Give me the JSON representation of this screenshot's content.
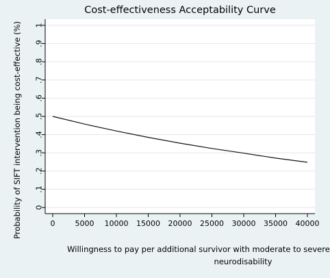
{
  "chart_data": {
    "type": "line",
    "title": "Cost-effectiveness Acceptability Curve",
    "xlabel_line1": "Willingness  to pay per additional survivor with moderate to severe",
    "xlabel_line2": "neurodisability",
    "ylabel": "Probability of SIFT intervention being cost-effective (%)",
    "xlim": [
      0,
      40000
    ],
    "ylim": [
      0,
      1
    ],
    "xticks": [
      0,
      5000,
      10000,
      15000,
      20000,
      25000,
      30000,
      35000,
      40000
    ],
    "xtick_labels": [
      "0",
      "5000",
      "10000",
      "15000",
      "20000",
      "25000",
      "30000",
      "35000",
      "40000"
    ],
    "yticks": [
      0,
      0.1,
      0.2,
      0.3,
      0.4,
      0.5,
      0.6,
      0.7,
      0.8,
      0.9,
      1
    ],
    "ytick_labels": [
      "0",
      ".1",
      ".2",
      ".3",
      ".4",
      ".5",
      ".6",
      ".7",
      ".8",
      ".9",
      "1"
    ],
    "grid": true,
    "series": [
      {
        "x": [
          0,
          5000,
          10000,
          15000,
          20000,
          25000,
          30000,
          35000,
          40000
        ],
        "y": [
          0.5,
          0.458,
          0.42,
          0.385,
          0.353,
          0.324,
          0.298,
          0.271,
          0.248
        ]
      }
    ],
    "colors": {
      "background": "#eaf2f3",
      "plot_area": "#ffffff",
      "grid": "#e6e6e6",
      "line": "#111111",
      "text": "#000000"
    }
  }
}
